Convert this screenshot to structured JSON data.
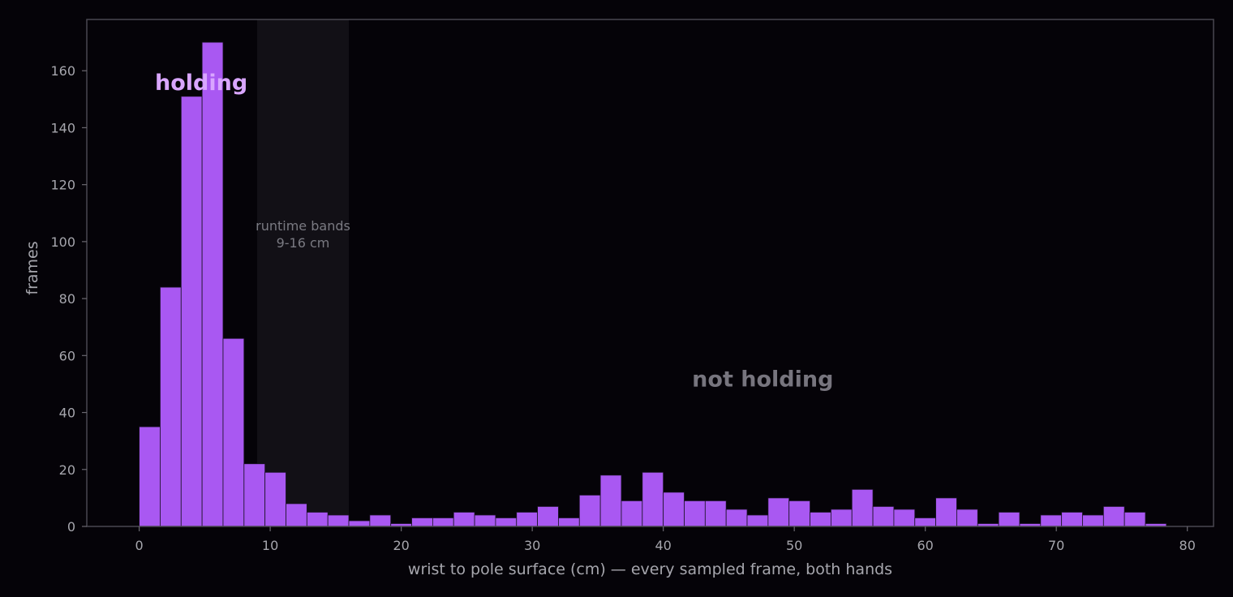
{
  "chart_data": {
    "type": "bar",
    "xlabel": "wrist to pole surface (cm) — every sampled frame, both hands",
    "ylabel": "frames",
    "xlim": [
      -4,
      82
    ],
    "ylim": [
      0,
      178
    ],
    "x_ticks": [
      0,
      10,
      20,
      30,
      40,
      50,
      60,
      70,
      80
    ],
    "y_ticks": [
      0,
      20,
      40,
      60,
      80,
      100,
      120,
      140,
      160
    ],
    "grid": false,
    "bin_width": 1.6,
    "bin_start": 0,
    "values": [
      35,
      84,
      151,
      170,
      66,
      22,
      19,
      8,
      5,
      4,
      2,
      4,
      1,
      3,
      3,
      5,
      4,
      3,
      5,
      7,
      3,
      11,
      18,
      9,
      19,
      12,
      9,
      9,
      6,
      4,
      10,
      9,
      5,
      6,
      13,
      7,
      6,
      3,
      10,
      6,
      1,
      5,
      1,
      4,
      5,
      4,
      7,
      5,
      1
    ],
    "shaded_band": {
      "from": 9,
      "to": 16,
      "label_line1": "runtime bands",
      "label_line2": "9-16 cm"
    },
    "annotations": [
      {
        "text": "holding",
        "x": 1.2,
        "y": 156,
        "color": "#d9a6ff"
      },
      {
        "text": "not holding",
        "x": 42.2,
        "y": 52,
        "color": "#77757e"
      }
    ],
    "colors": {
      "background": "#050308",
      "bar": "#a958f2",
      "band": "#121016",
      "axis": "#4a4850"
    }
  }
}
